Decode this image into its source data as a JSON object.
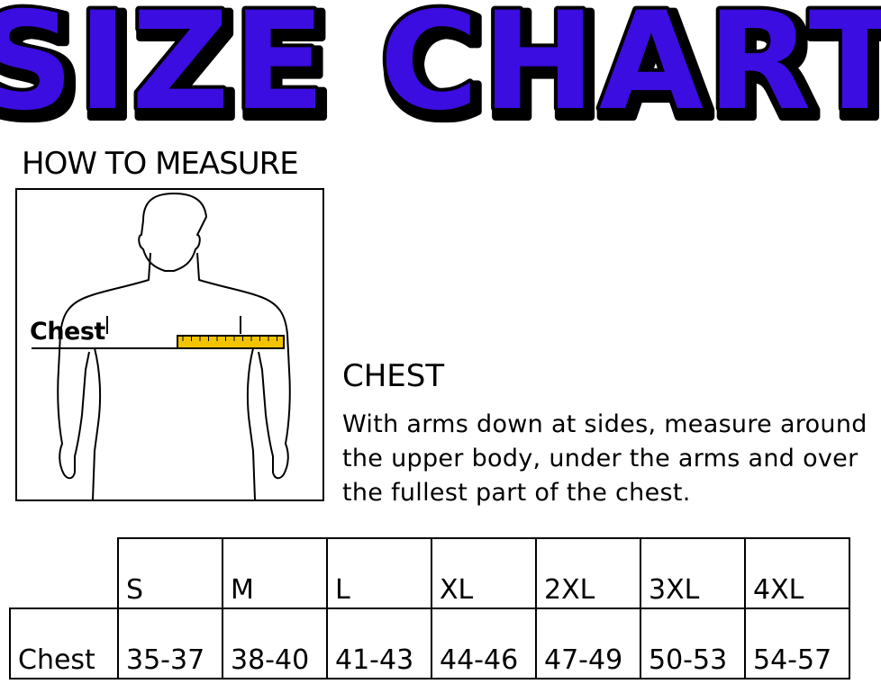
{
  "title": "SIZE CHART",
  "colors": {
    "title_fill": "#3a0be0",
    "title_outline": "#000000",
    "tape": "#f2c400"
  },
  "how_to_measure": {
    "heading": "HOW TO MEASURE",
    "figure_label": "Chest"
  },
  "chest_section": {
    "heading": "CHEST",
    "description": "With arms down at sides, measure around the upper body, under the arms and over the fullest part of the chest."
  },
  "size_table": {
    "sizes": [
      "S",
      "M",
      "L",
      "XL",
      "2XL",
      "3XL",
      "4XL"
    ],
    "rows": [
      {
        "label": "Chest",
        "values": [
          "35-37",
          "38-40",
          "41-43",
          "44-46",
          "47-49",
          "50-53",
          "54-57"
        ]
      }
    ]
  }
}
